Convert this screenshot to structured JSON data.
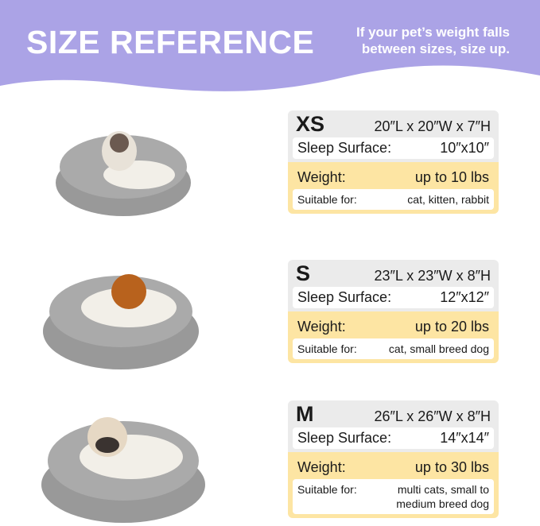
{
  "header": {
    "title": "SIZE REFERENCE",
    "note": "If your pet’s weight falls between sizes, size up.",
    "color": "#aba3e6"
  },
  "sizes": [
    {
      "size": "XS",
      "dims": "20″L x 20″W x 7″H",
      "sleep_label": "Sleep Surface:",
      "sleep": "10″x10″",
      "weight_label": "Weight:",
      "weight": "up to 10 lbs",
      "suit_label": "Suitable for:",
      "suit": "cat, kitten, rabbit",
      "pet": "cat"
    },
    {
      "size": "S",
      "dims": "23″L x 23″W x 8″H",
      "sleep_label": "Sleep Surface:",
      "sleep": "12″x12″",
      "weight_label": "Weight:",
      "weight": "up to 20 lbs",
      "suit_label": "Suitable for:",
      "suit": "cat, small breed dog",
      "pet": "pomeranian"
    },
    {
      "size": "M",
      "dims": "26″L x 26″W x 8″H",
      "sleep_label": "Sleep Surface:",
      "sleep": "14″x14″",
      "weight_label": "Weight:",
      "weight": "up to 30 lbs",
      "suit_label": "Suitable for:",
      "suit": "multi cats, small to medium breed dog",
      "pet": "bulldog"
    }
  ]
}
